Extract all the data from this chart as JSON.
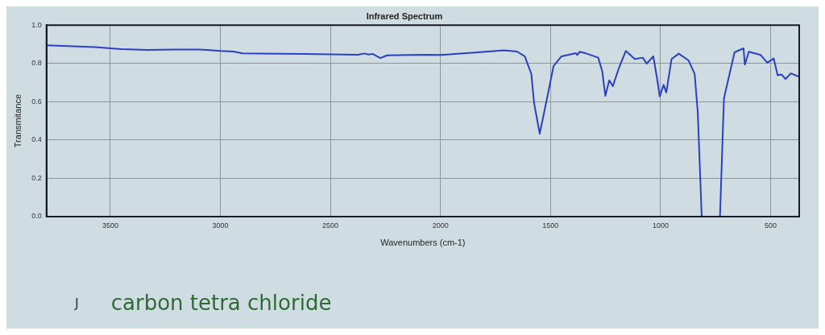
{
  "chart_data": {
    "type": "line",
    "title": "Infrared Spectrum",
    "xlabel": "Wavenumbers (cm-1)",
    "ylabel": "Transmitance",
    "annotations": [
      "J",
      "carbon tetra chloride"
    ],
    "xlim": [
      3790,
      370
    ],
    "ylim": [
      0,
      1
    ],
    "xticks": [
      3500,
      3000,
      2500,
      2000,
      1500,
      1000,
      500
    ],
    "yticks": [
      {
        "value": 0,
        "label": "0.0"
      },
      {
        "value": 0.2,
        "label": "0.2"
      },
      {
        "value": 0.4,
        "label": "0.4"
      },
      {
        "value": 0.6,
        "label": "0.6"
      },
      {
        "value": 0.8,
        "label": "0.8"
      },
      {
        "value": 1,
        "label": "1.0"
      }
    ],
    "grid": true,
    "legend": false,
    "marker": "none",
    "line_style": "solid",
    "series": [
      {
        "color": "#2b3fc4",
        "x": [
          3790,
          3570,
          3450,
          3330,
          3210,
          3095,
          3000,
          2940,
          2900,
          2820,
          2615,
          2375,
          2345,
          2327,
          2309,
          2273,
          2243,
          2063,
          1998,
          1831,
          1712,
          1652,
          1617,
          1587,
          1575,
          1549,
          1521,
          1486,
          1450,
          1385,
          1379,
          1367,
          1343,
          1283,
          1265,
          1251,
          1233,
          1217,
          1188,
          1158,
          1117,
          1081,
          1063,
          1033,
          1015,
          1004,
          986,
          974,
          950,
          917,
          873,
          845,
          831,
          813,
          730,
          712,
          664,
          623,
          617,
          599,
          545,
          515,
          486,
          468,
          450,
          432,
          408,
          370
        ],
        "values": [
          0.895,
          0.885,
          0.875,
          0.87,
          0.873,
          0.873,
          0.865,
          0.862,
          0.853,
          0.852,
          0.849,
          0.845,
          0.852,
          0.846,
          0.85,
          0.828,
          0.842,
          0.845,
          0.844,
          0.858,
          0.868,
          0.862,
          0.837,
          0.745,
          0.596,
          0.433,
          0.589,
          0.787,
          0.837,
          0.854,
          0.844,
          0.861,
          0.854,
          0.83,
          0.759,
          0.631,
          0.712,
          0.681,
          0.78,
          0.865,
          0.823,
          0.83,
          0.799,
          0.837,
          0.716,
          0.628,
          0.688,
          0.648,
          0.823,
          0.851,
          0.816,
          0.745,
          0.546,
          0,
          0,
          0.617,
          0.858,
          0.879,
          0.794,
          0.861,
          0.844,
          0.804,
          0.826,
          0.738,
          0.742,
          0.719,
          0.748,
          0.73
        ]
      }
    ]
  }
}
